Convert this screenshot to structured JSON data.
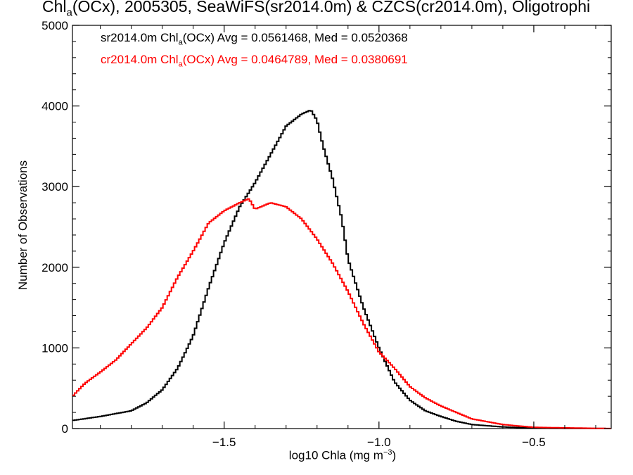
{
  "title": {
    "pre": "Chl",
    "sub": "a",
    "post": "(OCx), 2005305, SeaWiFS(sr2014.0m) & CZCS(cr2014.0m), Oligotrophi"
  },
  "legend": [
    {
      "prefix": "sr2014.0m Chl",
      "sub": "a",
      "suffix": "(OCx) Avg = 0.0561468, Med = 0.0520368",
      "color": "#000000"
    },
    {
      "prefix": "cr2014.0m Chl",
      "sub": "a",
      "suffix": "(OCx) Avg = 0.0464789, Med = 0.0380691",
      "color": "#ff0000"
    }
  ],
  "chart_data": {
    "type": "line",
    "step": true,
    "xlabel_main": "log10 Chla (mg m",
    "xlabel_sup": "−3",
    "xlabel_end": ")",
    "ylabel": "Number of Observations",
    "xlim": [
      -1.99,
      -0.25
    ],
    "ylim": [
      0,
      5000
    ],
    "xticks": [
      -1.5,
      -1.0,
      -0.5
    ],
    "xtick_labels": [
      "−1.5",
      "−1.0",
      "−0.5"
    ],
    "yticks": [
      0,
      1000,
      2000,
      3000,
      4000,
      5000
    ],
    "ytick_labels": [
      "0",
      "1000",
      "2000",
      "3000",
      "4000",
      "5000"
    ],
    "grid": false,
    "series": [
      {
        "name": "sr2014.0m",
        "color": "#000000",
        "points": [
          [
            -1.99,
            100
          ],
          [
            -1.9,
            150
          ],
          [
            -1.8,
            220
          ],
          [
            -1.75,
            320
          ],
          [
            -1.7,
            480
          ],
          [
            -1.65,
            750
          ],
          [
            -1.6,
            1150
          ],
          [
            -1.55,
            1750
          ],
          [
            -1.5,
            2300
          ],
          [
            -1.45,
            2750
          ],
          [
            -1.4,
            3050
          ],
          [
            -1.35,
            3400
          ],
          [
            -1.3,
            3750
          ],
          [
            -1.25,
            3900
          ],
          [
            -1.22,
            3950
          ],
          [
            -1.2,
            3820
          ],
          [
            -1.18,
            3500
          ],
          [
            -1.15,
            3100
          ],
          [
            -1.12,
            2600
          ],
          [
            -1.1,
            2100
          ],
          [
            -1.05,
            1500
          ],
          [
            -1.0,
            1000
          ],
          [
            -0.95,
            580
          ],
          [
            -0.9,
            350
          ],
          [
            -0.85,
            220
          ],
          [
            -0.8,
            150
          ],
          [
            -0.75,
            90
          ],
          [
            -0.7,
            50
          ],
          [
            -0.6,
            20
          ],
          [
            -0.5,
            5
          ],
          [
            -0.25,
            0
          ]
        ]
      },
      {
        "name": "cr2014.0m",
        "color": "#ff0000",
        "points": [
          [
            -1.99,
            400
          ],
          [
            -1.95,
            560
          ],
          [
            -1.9,
            700
          ],
          [
            -1.85,
            850
          ],
          [
            -1.8,
            1050
          ],
          [
            -1.75,
            1250
          ],
          [
            -1.7,
            1500
          ],
          [
            -1.65,
            1880
          ],
          [
            -1.6,
            2200
          ],
          [
            -1.55,
            2550
          ],
          [
            -1.5,
            2700
          ],
          [
            -1.45,
            2800
          ],
          [
            -1.42,
            2850
          ],
          [
            -1.4,
            2720
          ],
          [
            -1.35,
            2800
          ],
          [
            -1.3,
            2750
          ],
          [
            -1.25,
            2600
          ],
          [
            -1.2,
            2350
          ],
          [
            -1.15,
            2050
          ],
          [
            -1.1,
            1700
          ],
          [
            -1.05,
            1300
          ],
          [
            -1.0,
            950
          ],
          [
            -0.95,
            750
          ],
          [
            -0.9,
            520
          ],
          [
            -0.85,
            380
          ],
          [
            -0.8,
            280
          ],
          [
            -0.75,
            200
          ],
          [
            -0.7,
            120
          ],
          [
            -0.6,
            50
          ],
          [
            -0.5,
            15
          ],
          [
            -0.25,
            0
          ]
        ]
      }
    ]
  }
}
